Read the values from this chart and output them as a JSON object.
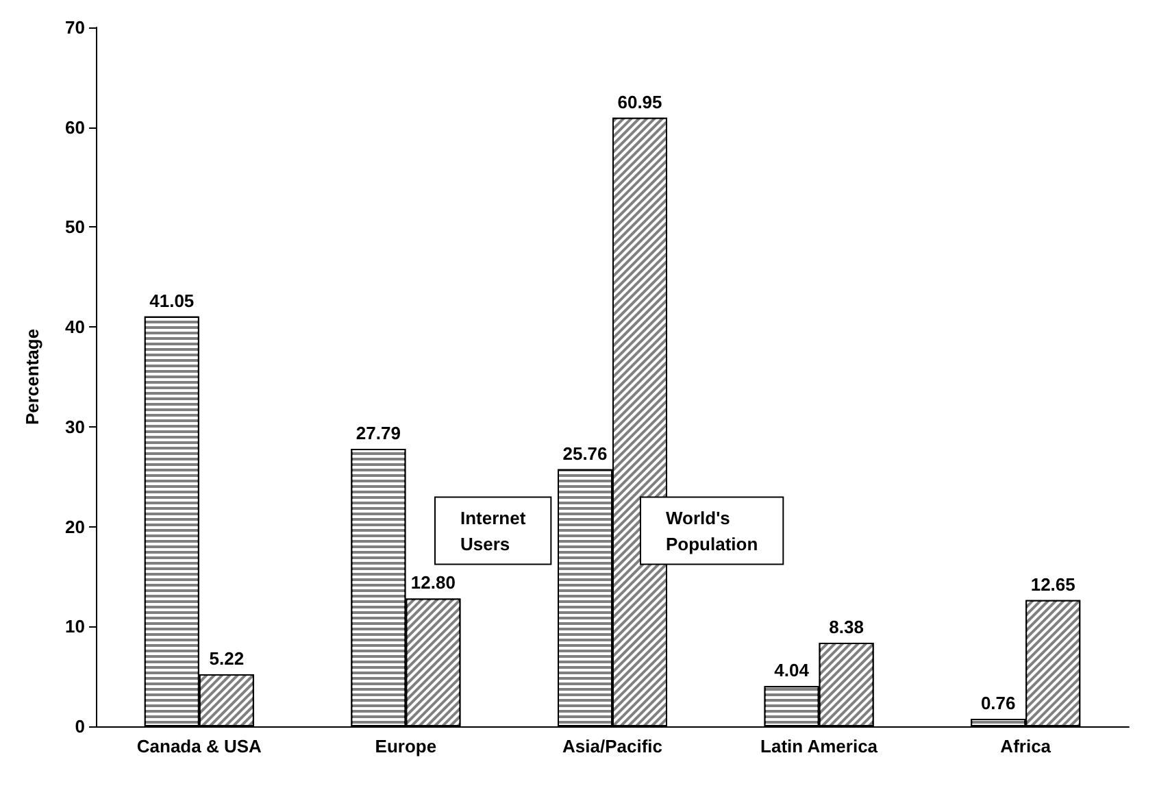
{
  "chart_data": {
    "type": "bar",
    "ylabel": "Percentage",
    "categories": [
      "Canada & USA",
      "Europe",
      "Asia/Pacific",
      "Latin America",
      "Africa"
    ],
    "series": [
      {
        "name": "Internet Users",
        "color": "#808080",
        "values": [
          41.05,
          27.79,
          25.76,
          4.04,
          0.76
        ]
      },
      {
        "name": "World's Population",
        "color": "#808080",
        "values": [
          5.22,
          12.8,
          60.95,
          8.38,
          12.65
        ]
      }
    ],
    "ylim": [
      0,
      70
    ],
    "yticks": [
      0,
      10,
      20,
      30,
      40,
      50,
      60,
      70
    ],
    "grid": false,
    "legend": false,
    "value_labels": [
      [
        "41.05",
        "27.79",
        "25.76",
        "4.04",
        "0.76"
      ],
      [
        "5.22",
        "12.80",
        "60.95",
        "8.38",
        "12.65"
      ]
    ]
  }
}
